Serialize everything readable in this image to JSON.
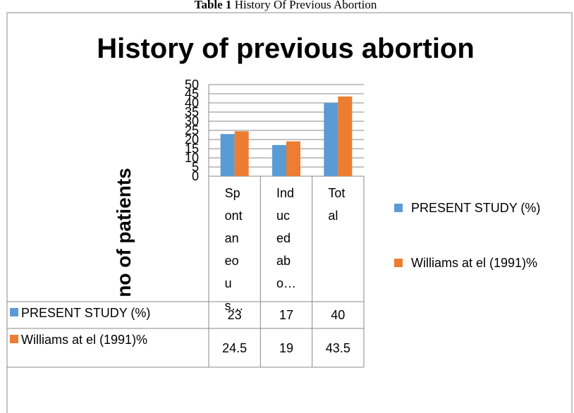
{
  "caption_label": "Table 1",
  "caption": "History Of Previous Abortion",
  "chart_data": {
    "type": "bar",
    "title": "History of previous abortion",
    "y_label": "no of patients",
    "categories": [
      "Spontaneous…",
      "Induced abo…",
      "Total"
    ],
    "series": [
      {
        "name": "PRESENT STUDY (%)",
        "color": "#5b9bd5",
        "values": [
          23,
          17,
          40
        ]
      },
      {
        "name": "Williams at el (1991)%",
        "color": "#ed7d31",
        "values": [
          24.5,
          19,
          43.5
        ]
      }
    ],
    "ylim": [
      0,
      50
    ],
    "yticks": [
      0,
      5,
      10,
      15,
      20,
      25,
      30,
      35,
      40,
      45,
      50
    ],
    "grid": true,
    "legend": "right",
    "data_table": true
  }
}
